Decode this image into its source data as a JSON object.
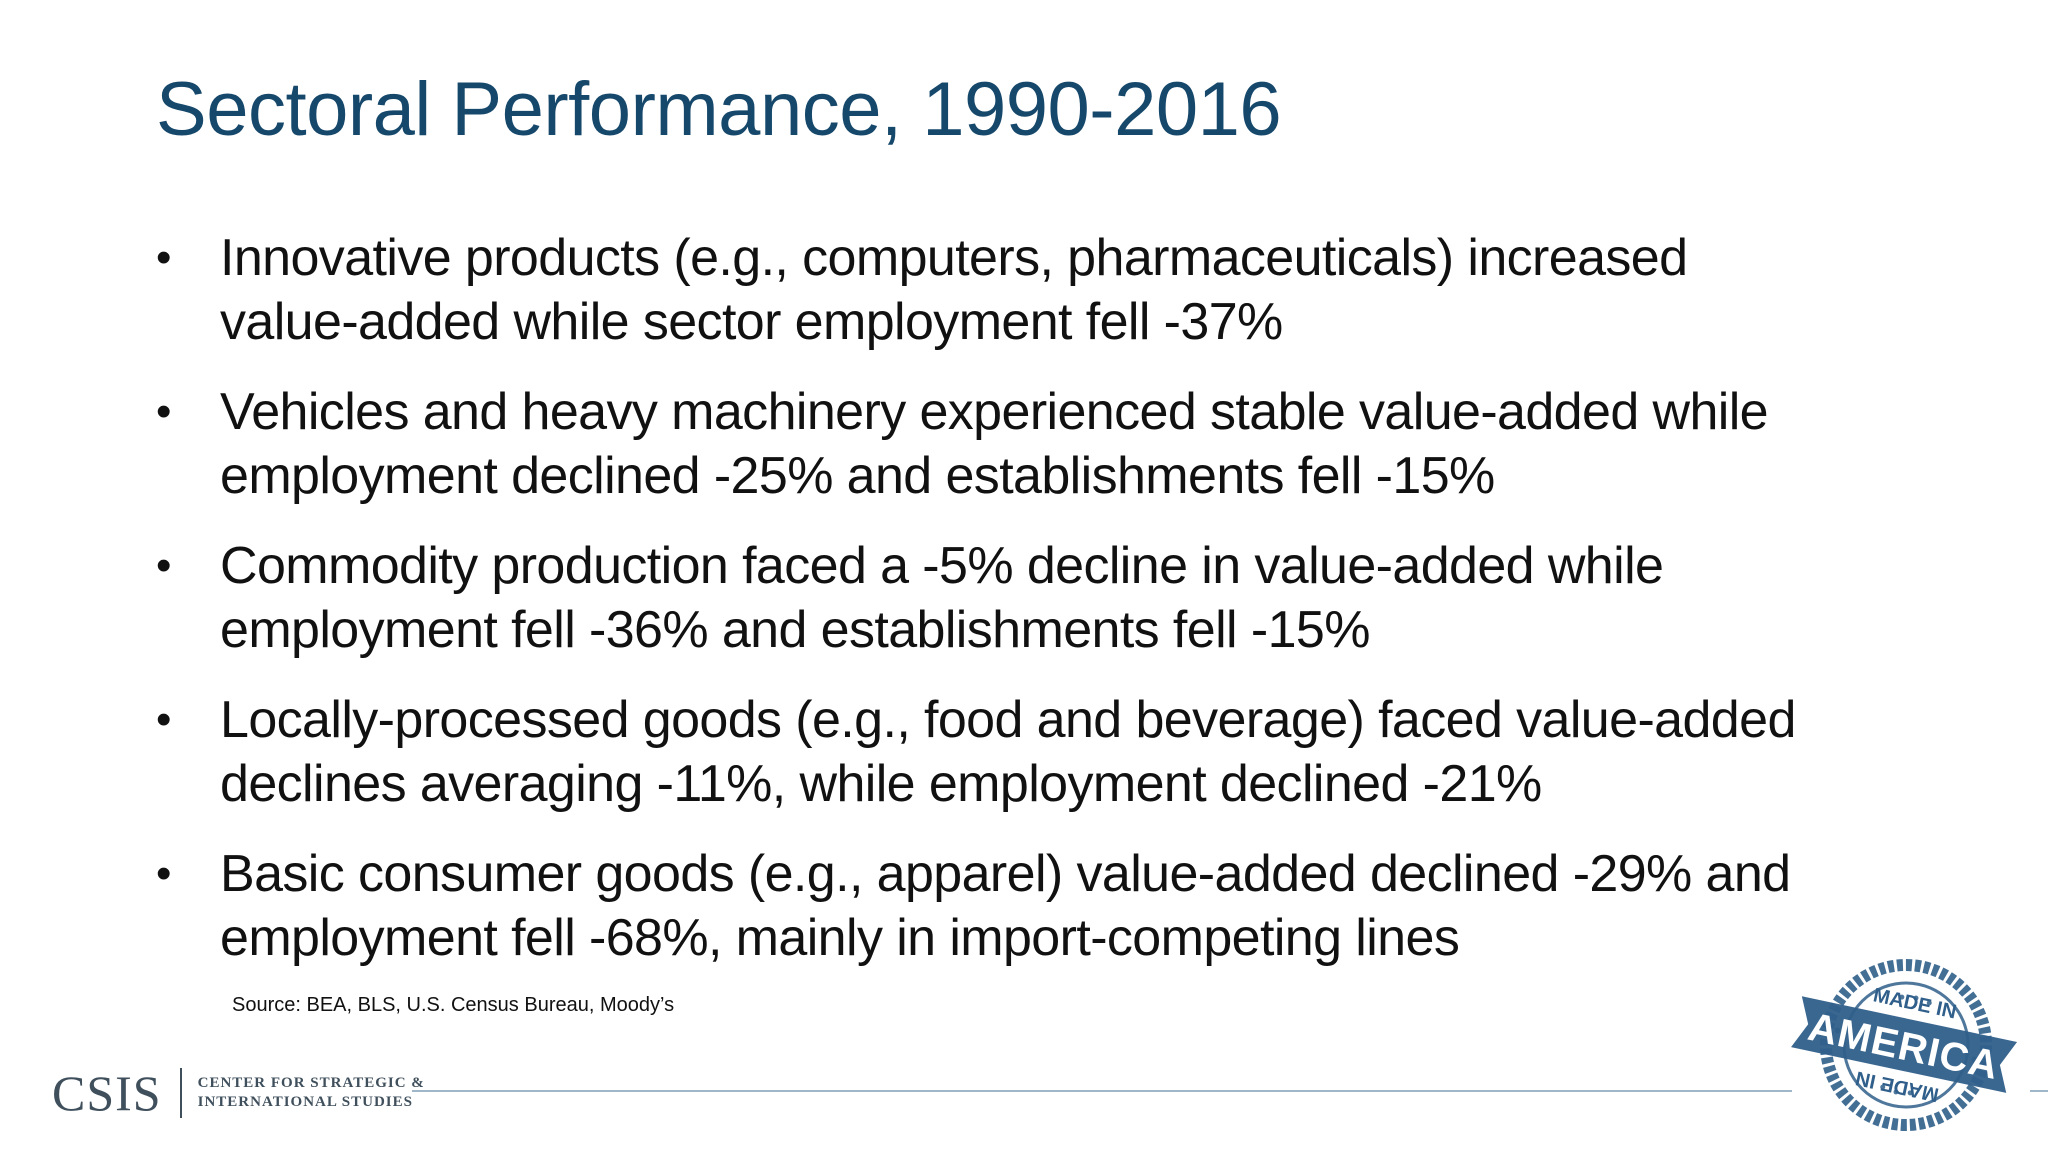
{
  "slide": {
    "title": "Sectoral Performance, 1990-2016",
    "bullet_symbol": "•",
    "bullets": [
      {
        "line1": "Innovative products (e.g., computers, pharmaceuticals) increased",
        "line2": "value-added while sector employment fell -37%"
      },
      {
        "line1": "Vehicles and heavy machinery experienced stable value-added while",
        "line2": "employment declined -25% and establishments fell -15%"
      },
      {
        "line1": "Commodity production faced a -5% decline in value-added while",
        "line2": "employment fell -36% and establishments fell -15%"
      },
      {
        "line1": "Locally-processed goods (e.g., food and beverage) faced value-added",
        "line2": "declines averaging -11%, while employment declined -21%"
      },
      {
        "line1": "Basic consumer goods (e.g., apparel) value-added declined -29% and",
        "line2": "employment fell -68%, mainly in import-competing lines"
      }
    ],
    "source": "Source:  BEA, BLS, U.S. Census Bureau, Moody’s"
  },
  "footer": {
    "logo_mark": "CSIS",
    "logo_line1": "CENTER FOR STRATEGIC &",
    "logo_line2": "INTERNATIONAL STUDIES"
  },
  "stamp": {
    "text_main": "AMERICA",
    "text_top": "MADE IN",
    "text_bottom": "MADE IN",
    "color": "#2f5f8a"
  },
  "colors": {
    "title": "#16486b",
    "body_text": "#111111",
    "logo": "#3f4f5c",
    "rule": "#9fb7c8"
  }
}
